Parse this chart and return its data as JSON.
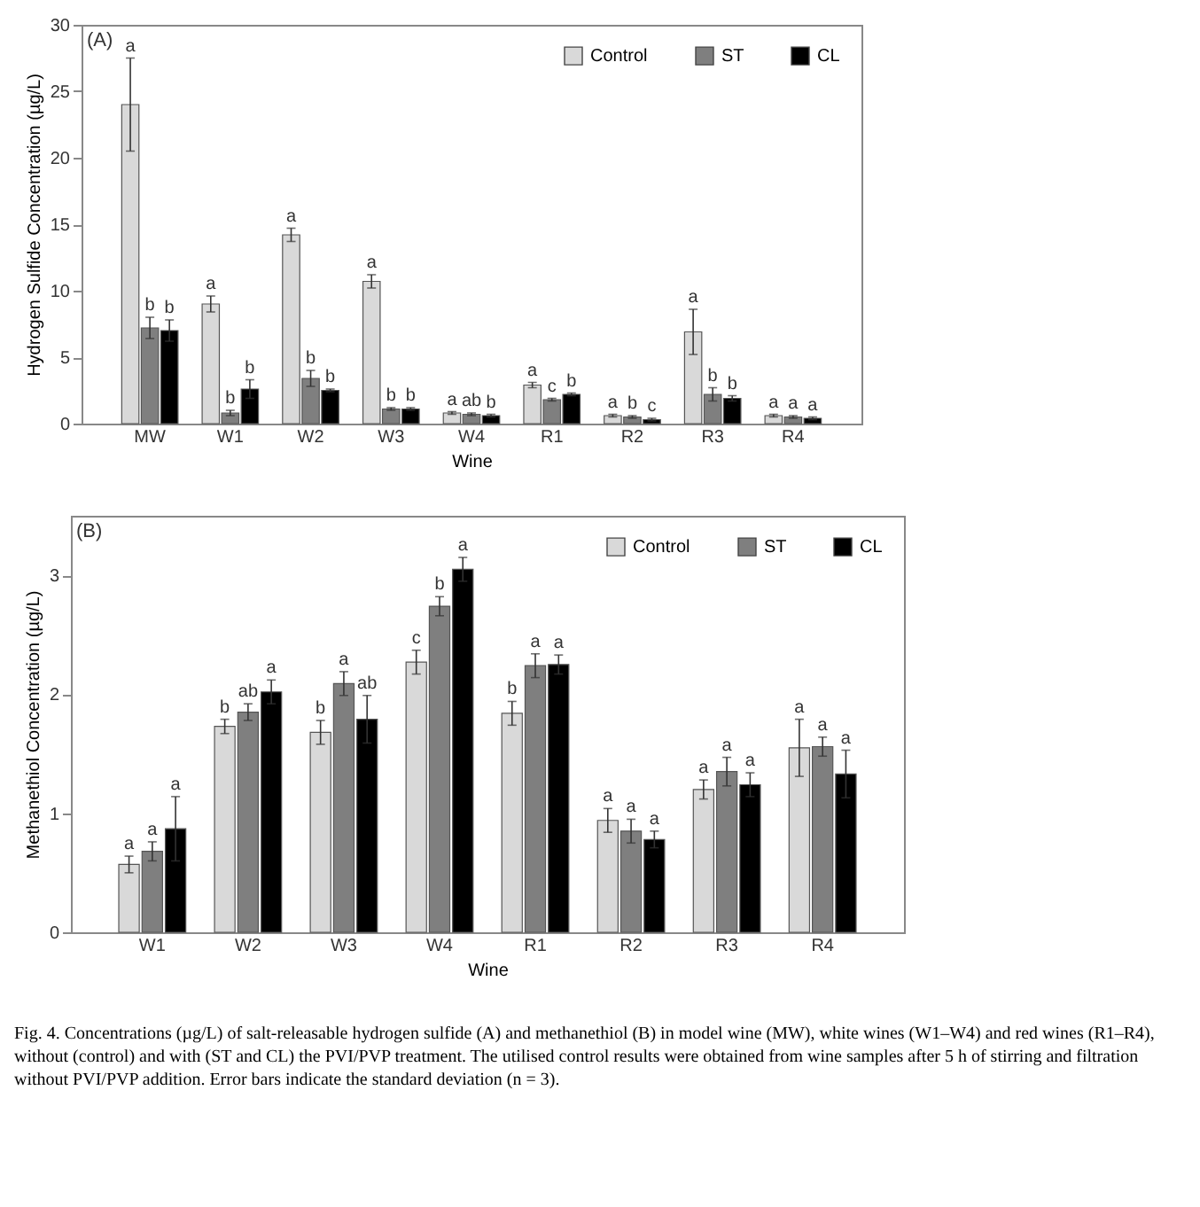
{
  "chart_data": [
    {
      "type": "bar",
      "xlabel": "Wine",
      "ylabel": "Hydrogen Sulfide Concentration (µg/L)",
      "annotations": [
        "(A)"
      ],
      "categories": [
        "MW",
        "W1",
        "W2",
        "W3",
        "W4",
        "R1",
        "R2",
        "R3",
        "R4"
      ],
      "ylim": [
        0,
        30
      ],
      "yticks": [
        0,
        5,
        10,
        15,
        20,
        25,
        30
      ],
      "grid": false,
      "legend": "top right",
      "series": [
        {
          "name": "Control",
          "color": "#d9d9d9",
          "values": [
            24,
            9.0,
            14.2,
            10.7,
            0.8,
            2.9,
            0.6,
            6.9,
            0.6
          ],
          "errors": [
            3.5,
            0.6,
            0.5,
            0.5,
            0.1,
            0.2,
            0.1,
            1.7,
            0.1
          ],
          "value_labels": [
            "a",
            "a",
            "a",
            "a",
            "a",
            "a",
            "a",
            "a",
            "a"
          ]
        },
        {
          "name": "ST",
          "color": "#7f7f7f",
          "values": [
            7.2,
            0.8,
            3.4,
            1.1,
            0.7,
            1.8,
            0.5,
            2.2,
            0.5
          ],
          "errors": [
            0.8,
            0.2,
            0.6,
            0.1,
            0.1,
            0.1,
            0.1,
            0.5,
            0.1
          ],
          "value_labels": [
            "b",
            "b",
            "b",
            "b",
            "ab",
            "c",
            "b",
            "b",
            "a"
          ]
        },
        {
          "name": "CL",
          "color": "#000000",
          "values": [
            7.0,
            2.6,
            2.5,
            1.1,
            0.6,
            2.2,
            0.3,
            1.9,
            0.4
          ],
          "errors": [
            0.8,
            0.7,
            0.1,
            0.1,
            0.1,
            0.1,
            0.1,
            0.2,
            0.1
          ],
          "value_labels": [
            "b",
            "b",
            "b",
            "b",
            "b",
            "b",
            "c",
            "b",
            "a"
          ]
        }
      ]
    },
    {
      "type": "bar",
      "xlabel": "Wine",
      "ylabel": "Methanethiol Concentration (µg/L)",
      "annotations": [
        "(B)",
        "Fig. 4. Concentrations (µg/L) of salt-releasable hydrogen sulfide (A) and methanethiol (B) in model wine (MW), white wines (W1–W4) and red wines (R1–R4), without (control) and with (ST and CL) the PVI/PVP treatment. The utilised control results were obtained from wine samples after 5 h of stirring and filtration without PVI/PVP addition. Error bars indicate the standard deviation (n = 3)."
      ],
      "categories": [
        "W1",
        "W2",
        "W3",
        "W4",
        "R1",
        "R2",
        "R3",
        "R4"
      ],
      "ylim": [
        0,
        3.5
      ],
      "yticks": [
        0,
        1,
        2,
        3
      ],
      "grid": false,
      "legend": "top right",
      "series": [
        {
          "name": "Control",
          "color": "#d9d9d9",
          "values": [
            0.57,
            1.73,
            1.68,
            2.27,
            1.84,
            0.94,
            1.2,
            1.55
          ],
          "errors": [
            0.07,
            0.06,
            0.1,
            0.1,
            0.1,
            0.1,
            0.08,
            0.24
          ],
          "value_labels": [
            "a",
            "b",
            "b",
            "c",
            "b",
            "a",
            "a",
            "a"
          ]
        },
        {
          "name": "ST",
          "color": "#7f7f7f",
          "values": [
            0.68,
            1.85,
            2.09,
            2.74,
            2.24,
            0.85,
            1.35,
            1.56
          ],
          "errors": [
            0.08,
            0.07,
            0.1,
            0.08,
            0.1,
            0.1,
            0.12,
            0.08
          ],
          "value_labels": [
            "a",
            "ab",
            "a",
            "b",
            "a",
            "a",
            "a",
            "a"
          ]
        },
        {
          "name": "CL",
          "color": "#000000",
          "values": [
            0.87,
            2.02,
            1.79,
            3.05,
            2.25,
            0.78,
            1.24,
            1.33
          ],
          "errors": [
            0.27,
            0.1,
            0.2,
            0.1,
            0.08,
            0.07,
            0.1,
            0.2
          ],
          "value_labels": [
            "a",
            "a",
            "ab",
            "a",
            "a",
            "a",
            "a",
            "a"
          ]
        }
      ]
    }
  ]
}
